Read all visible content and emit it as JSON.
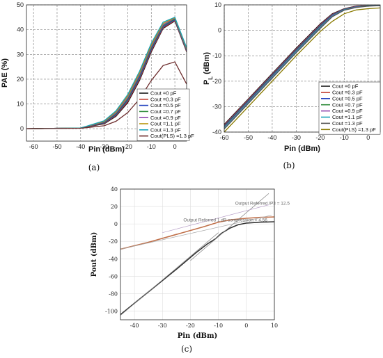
{
  "chart_data": [
    {
      "type": "line",
      "panel_label": "(a)",
      "xlabel": "Pin (dBm)",
      "ylabel": "PAE (%)",
      "xlim": [
        -63,
        5
      ],
      "ylim": [
        -5,
        50
      ],
      "xticks": [
        -60,
        -50,
        -40,
        -30,
        -20,
        -10,
        0
      ],
      "yticks": [
        0,
        10,
        20,
        30,
        40,
        50
      ],
      "grid": "dashed",
      "legend_position": "lower-right",
      "series": [
        {
          "name": "Cout =0 pF",
          "color": "#1a1a1a",
          "x": [
            -63,
            -40,
            -30,
            -25,
            -20,
            -15,
            -10,
            -5,
            0,
            5
          ],
          "y": [
            0,
            0.3,
            2,
            5,
            10.5,
            19.5,
            31,
            40.5,
            43.5,
            31
          ]
        },
        {
          "name": "Cout =0.3 pF",
          "color": "#c0392b",
          "x": [
            -63,
            -40,
            -30,
            -25,
            -20,
            -15,
            -10,
            -5,
            0,
            5
          ],
          "y": [
            0,
            0.3,
            2.2,
            5.3,
            11,
            20,
            31.5,
            40.8,
            43.7,
            31.2
          ]
        },
        {
          "name": "Cout =0.5 pF",
          "color": "#1f3fbf",
          "x": [
            -63,
            -40,
            -30,
            -25,
            -20,
            -15,
            -10,
            -5,
            0,
            5
          ],
          "y": [
            0,
            0.3,
            2.4,
            5.6,
            11.5,
            20.6,
            32,
            41.2,
            44,
            31.5
          ]
        },
        {
          "name": "Cout =0.7 pF",
          "color": "#2e8b3a",
          "x": [
            -63,
            -40,
            -30,
            -25,
            -20,
            -15,
            -10,
            -5,
            0,
            5
          ],
          "y": [
            0,
            0.3,
            2.6,
            6,
            12,
            21.2,
            32.6,
            41.6,
            44.3,
            31.8
          ]
        },
        {
          "name": "Cout =0.9 pF",
          "color": "#8e44ad",
          "x": [
            -63,
            -40,
            -30,
            -25,
            -20,
            -15,
            -10,
            -5,
            0,
            5
          ],
          "y": [
            0,
            0.3,
            2.8,
            6.4,
            12.6,
            21.8,
            33.2,
            42,
            44.6,
            32.1
          ]
        },
        {
          "name": "Cout =1.1 pF",
          "color": "#b7950b",
          "x": [
            -63,
            -40,
            -30,
            -25,
            -20,
            -15,
            -10,
            -5,
            0,
            5
          ],
          "y": [
            0,
            0.3,
            3,
            6.8,
            13.2,
            22.5,
            33.8,
            42.5,
            44.8,
            32.4
          ]
        },
        {
          "name": "Cout =1.3 pF",
          "color": "#17a2b8",
          "x": [
            -63,
            -40,
            -30,
            -25,
            -20,
            -15,
            -10,
            -5,
            0,
            5
          ],
          "y": [
            0,
            0.3,
            3.2,
            7.2,
            13.8,
            23.2,
            34.5,
            43,
            45,
            32.7
          ]
        },
        {
          "name": "Cout(PLS) =1.3 pF",
          "color": "#6b2a2a",
          "x": [
            -63,
            -40,
            -30,
            -25,
            -20,
            -15,
            -10,
            -5,
            0,
            5
          ],
          "y": [
            0,
            0.2,
            1.2,
            3,
            6.5,
            12,
            19.5,
            25.5,
            27,
            18
          ]
        }
      ]
    },
    {
      "type": "line",
      "panel_label": "(b)",
      "xlabel": "Pin (dBm)",
      "ylabel": "P",
      "ylabel_sub": "L",
      "ylabel_unit": " (dBm)",
      "xlim": [
        -60,
        5
      ],
      "ylim": [
        -40,
        10
      ],
      "xticks": [
        -60,
        -50,
        -40,
        -30,
        -20,
        -10,
        0
      ],
      "yticks": [
        -40,
        -30,
        -20,
        -10,
        0,
        10
      ],
      "grid": "dashed",
      "legend_position": "lower-right",
      "series": [
        {
          "name": "Cout =0 pF",
          "color": "#1a1a1a",
          "x": [
            -60,
            -50,
            -40,
            -30,
            -20,
            -15,
            -10,
            -5,
            0,
            5
          ],
          "y": [
            -37,
            -27,
            -17,
            -7,
            2.5,
            6.5,
            8.5,
            9.5,
            9.8,
            9.9
          ]
        },
        {
          "name": "Cout =0.3 pF",
          "color": "#c0392b",
          "x": [
            -60,
            -50,
            -40,
            -30,
            -20,
            -15,
            -10,
            -5,
            0,
            5
          ],
          "y": [
            -37.3,
            -27.3,
            -17.3,
            -7.3,
            2.2,
            6.3,
            8.4,
            9.4,
            9.8,
            9.9
          ]
        },
        {
          "name": "Cout =0.5 pF",
          "color": "#1f3fbf",
          "x": [
            -60,
            -50,
            -40,
            -30,
            -20,
            -15,
            -10,
            -5,
            0,
            5
          ],
          "y": [
            -37.6,
            -27.6,
            -17.6,
            -7.6,
            1.9,
            6.1,
            8.3,
            9.3,
            9.7,
            9.8
          ]
        },
        {
          "name": "Cout =0.7 pF",
          "color": "#2e8b3a",
          "x": [
            -60,
            -50,
            -40,
            -30,
            -20,
            -15,
            -10,
            -5,
            0,
            5
          ],
          "y": [
            -37.9,
            -27.9,
            -17.9,
            -7.9,
            1.6,
            5.9,
            8.2,
            9.2,
            9.7,
            9.8
          ]
        },
        {
          "name": "Cout =0.9 pF",
          "color": "#8e44ad",
          "x": [
            -60,
            -50,
            -40,
            -30,
            -20,
            -15,
            -10,
            -5,
            0,
            5
          ],
          "y": [
            -38.2,
            -28.2,
            -18.2,
            -8.2,
            1.3,
            5.7,
            8.1,
            9.2,
            9.6,
            9.8
          ]
        },
        {
          "name": "Cout =1.1 pF",
          "color": "#17a2b8",
          "x": [
            -60,
            -50,
            -40,
            -30,
            -20,
            -15,
            -10,
            -5,
            0,
            5
          ],
          "y": [
            -38.5,
            -28.5,
            -18.5,
            -8.5,
            1,
            5.5,
            8,
            9.1,
            9.6,
            9.7
          ]
        },
        {
          "name": "Cout =1.3 pF",
          "color": "#555555",
          "x": [
            -60,
            -50,
            -40,
            -30,
            -20,
            -15,
            -10,
            -5,
            0,
            5
          ],
          "y": [
            -38.8,
            -28.8,
            -18.8,
            -8.8,
            0.7,
            5.3,
            7.9,
            9,
            9.5,
            9.7
          ]
        },
        {
          "name": "Cout(PLS) =1.3 pF",
          "color": "#8a7a00",
          "x": [
            -60,
            -50,
            -40,
            -30,
            -20,
            -15,
            -10,
            -5,
            0,
            5
          ],
          "y": [
            -40,
            -30,
            -20,
            -10,
            -0.5,
            3.5,
            6.5,
            8,
            8.5,
            8.8
          ]
        }
      ]
    },
    {
      "type": "line",
      "panel_label": "(c)",
      "xlabel": "Pin (dBm)",
      "ylabel": "Pout (dBm)",
      "xlim": [
        -45,
        10
      ],
      "ylim": [
        -110,
        40
      ],
      "xticks": [
        -40,
        -30,
        -20,
        -10,
        0,
        10
      ],
      "yticks": [
        -100,
        -80,
        -60,
        -40,
        -20,
        0,
        20,
        40
      ],
      "grid": "solid-light",
      "annotations": [
        {
          "text": "Output Referred IP3 = 12.5",
          "x": -4,
          "y": 22
        },
        {
          "text": "Output Referred 1 dB compression = 4.56",
          "x": -22.5,
          "y": 3
        }
      ],
      "series": [
        {
          "name": "",
          "color": "#333333",
          "x": [
            -45,
            -35,
            -25,
            -18,
            -14,
            -11,
            -9,
            -6,
            -3,
            0,
            5,
            10
          ],
          "y": [
            -104,
            -78,
            -52,
            -33,
            -23,
            -17,
            -11,
            -5,
            -1,
            1,
            2,
            2.5
          ]
        },
        {
          "name": "",
          "color": "#c0704a",
          "x": [
            -45,
            -35,
            -25,
            -15,
            -10,
            -5,
            0,
            5,
            10
          ],
          "y": [
            -29,
            -21,
            -12,
            -3,
            2,
            5,
            6.5,
            7.5,
            8
          ]
        },
        {
          "name": "",
          "color": "#888888",
          "x": [
            -45,
            -10
          ],
          "y": [
            -105,
            -10
          ]
        },
        {
          "name": "",
          "color": "#aaaaaa",
          "x": [
            -45,
            9
          ],
          "y": [
            -29,
            10
          ]
        },
        {
          "name": "",
          "color": "#888888",
          "x": [
            -20,
            8
          ],
          "y": [
            -42,
            35
          ]
        },
        {
          "name": "",
          "color": "#b8a0c8",
          "x": [
            -30,
            8
          ],
          "y": [
            -10,
            22
          ]
        }
      ]
    }
  ]
}
